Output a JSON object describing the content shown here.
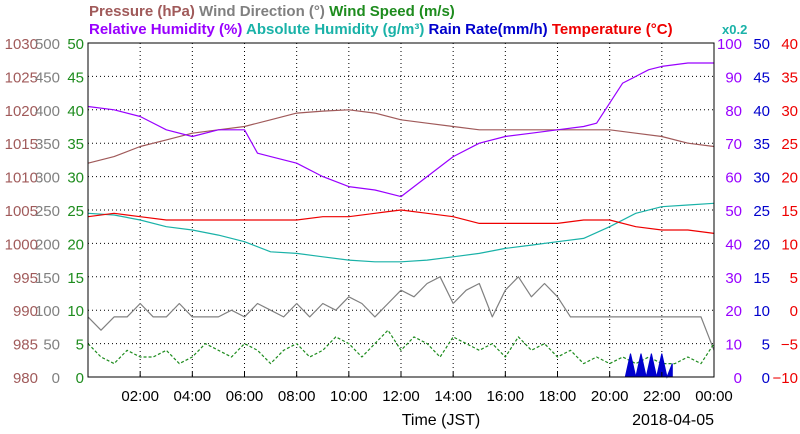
{
  "header": {
    "row1": [
      {
        "text": "Pressure (hPa)",
        "color": "#a05a5a"
      },
      {
        "text": "Wind Direction (°)",
        "color": "#808080"
      },
      {
        "text": "Wind Speed (m/s)",
        "color": "#1e8c1e"
      }
    ],
    "row2": [
      {
        "text": "Relative Humidity (%)",
        "color": "#9900ff"
      },
      {
        "text": "Absolute Humidity (g/m³)",
        "color": "#1ab2a8"
      },
      {
        "text": "Rain Rate(mm/h)",
        "color": "#0000cc"
      },
      {
        "text": "Temperature (°C)",
        "color": "#ee0000"
      }
    ],
    "multiplier": "x0.2"
  },
  "footer": {
    "xlabel": "Time (JST)",
    "date": "2018-04-05"
  },
  "chart_data": {
    "type": "line",
    "title": "",
    "xlabel": "Time (JST)",
    "date": "2018-04-05",
    "x_unit": "hours",
    "xlim": [
      0,
      24
    ],
    "x_ticks": [
      2,
      4,
      6,
      8,
      10,
      12,
      14,
      16,
      18,
      20,
      22,
      24
    ],
    "x_tick_labels": [
      "02:00",
      "04:00",
      "06:00",
      "08:00",
      "10:00",
      "12:00",
      "14:00",
      "16:00",
      "18:00",
      "20:00",
      "22:00",
      "00:00"
    ],
    "grid": true,
    "left_axes": [
      {
        "name": "Pressure (hPa)",
        "color": "#a05a5a",
        "min": 980,
        "max": 1030,
        "labels": [
          "1030",
          "1025",
          "1020",
          "1015",
          "1010",
          "1005",
          "1000",
          "995",
          "990",
          "985",
          "980"
        ]
      },
      {
        "name": "Wind Direction (°)",
        "color": "#808080",
        "min": 0,
        "max": 500,
        "labels": [
          "500",
          "450",
          "400",
          "350",
          "300",
          "250",
          "200",
          "150",
          "100",
          "50",
          "0"
        ]
      },
      {
        "name": "Wind Speed (m/s)",
        "color": "#1e8c1e",
        "min": 0,
        "max": 50,
        "labels": [
          "50",
          "45",
          "40",
          "35",
          "30",
          "25",
          "20",
          "15",
          "10",
          "5",
          "0"
        ]
      }
    ],
    "right_axes": [
      {
        "name": "Relative Humidity (%)",
        "color": "#9900ff",
        "min": 0,
        "max": 100,
        "labels": [
          "100",
          "90",
          "80",
          "70",
          "60",
          "50",
          "40",
          "30",
          "20",
          "10",
          "0"
        ]
      },
      {
        "name": "Rain Rate(mm/h)",
        "color": "#0000cc",
        "min": 0,
        "max": 50,
        "labels": [
          "50",
          "45",
          "40",
          "35",
          "30",
          "25",
          "20",
          "15",
          "10",
          "5",
          "0"
        ]
      },
      {
        "name": "Temperature (°C)",
        "color": "#ee0000",
        "min": -10,
        "max": 40,
        "labels": [
          "40",
          "35",
          "30",
          "25",
          "20",
          "15",
          "10",
          "5",
          "0",
          "−5",
          "−10"
        ]
      }
    ],
    "series": [
      {
        "name": "Pressure (hPa)",
        "axis": "left",
        "axis_min": 980,
        "axis_max": 1030,
        "color": "#a05a5a",
        "x": [
          0,
          1,
          2,
          3,
          4,
          5,
          6,
          7,
          8,
          9,
          10,
          11,
          12,
          13,
          14,
          15,
          16,
          17,
          18,
          19,
          20,
          21,
          22,
          23,
          24
        ],
        "y": [
          1012,
          1013,
          1014.5,
          1015.5,
          1016.5,
          1017,
          1017.5,
          1018.5,
          1019.5,
          1019.8,
          1020,
          1019.5,
          1018.5,
          1018,
          1017.5,
          1017,
          1017,
          1017,
          1017,
          1017,
          1017,
          1016.5,
          1016,
          1015,
          1014.5
        ]
      },
      {
        "name": "Relative Humidity (%)",
        "axis": "right",
        "axis_min": 0,
        "axis_max": 100,
        "color": "#9900ff",
        "x": [
          0,
          1,
          2,
          3,
          4,
          5,
          6,
          6.5,
          7,
          8,
          9,
          10,
          11,
          12,
          13,
          14,
          15,
          16,
          17,
          18,
          19,
          19.5,
          20,
          20.5,
          21,
          21.5,
          22,
          23,
          24
        ],
        "y": [
          81,
          80,
          78,
          74,
          72,
          74,
          74,
          67,
          66,
          64,
          60,
          57,
          56,
          54,
          60,
          66,
          70,
          72,
          73,
          74,
          75,
          76,
          82,
          88,
          90,
          92,
          93,
          94,
          94
        ]
      },
      {
        "name": "Absolute Humidity (g/m³)",
        "axis": "right",
        "axis_min": 0,
        "axis_max": 100,
        "scale_note": "x0.2",
        "color": "#1ab2a8",
        "x": [
          0,
          1,
          2,
          3,
          4,
          5,
          6,
          7,
          8,
          9,
          10,
          11,
          12,
          13,
          14,
          15,
          16,
          17,
          18,
          19,
          20,
          21,
          22,
          23,
          24
        ],
        "y": [
          49,
          48.5,
          47,
          45,
          44,
          42.5,
          40.5,
          37.5,
          37,
          36,
          35,
          34.5,
          34.5,
          35,
          36,
          37,
          38.5,
          39.5,
          40.5,
          41.5,
          45,
          49,
          51,
          51.5,
          52
        ]
      },
      {
        "name": "Temperature (°C)",
        "axis": "right",
        "axis_min": -10,
        "axis_max": 40,
        "color": "#ee0000",
        "x": [
          0,
          1,
          2,
          3,
          4,
          5,
          6,
          7,
          8,
          9,
          10,
          11,
          12,
          13,
          14,
          15,
          16,
          17,
          18,
          19,
          20,
          21,
          22,
          23,
          24
        ],
        "y": [
          14,
          14.5,
          14,
          13.5,
          13.5,
          13.5,
          13.5,
          13.5,
          13.5,
          14,
          14,
          14.5,
          15,
          14.5,
          14,
          13,
          13,
          13,
          13,
          13.5,
          13.5,
          12.5,
          12,
          12,
          11.5
        ]
      },
      {
        "name": "Wind Direction (°)",
        "axis": "left",
        "axis_min": 0,
        "axis_max": 500,
        "color": "#808080",
        "x": [
          0,
          0.5,
          1,
          1.5,
          2,
          2.5,
          3,
          3.5,
          4,
          4.5,
          5,
          5.5,
          6,
          6.5,
          7,
          7.5,
          8,
          8.5,
          9,
          9.5,
          10,
          10.5,
          11,
          11.5,
          12,
          12.5,
          13,
          13.5,
          14,
          14.5,
          15,
          15.5,
          16,
          16.5,
          17,
          17.5,
          18,
          18.5,
          19,
          19.5,
          20,
          20.5,
          21,
          21.5,
          22,
          22.5,
          23,
          23.5,
          24
        ],
        "y": [
          90,
          70,
          90,
          90,
          110,
          90,
          90,
          110,
          90,
          90,
          90,
          100,
          90,
          110,
          100,
          90,
          110,
          90,
          110,
          100,
          120,
          110,
          90,
          110,
          130,
          120,
          140,
          150,
          110,
          130,
          140,
          90,
          130,
          150,
          120,
          140,
          120,
          90,
          90,
          90,
          90,
          90,
          90,
          90,
          90,
          90,
          90,
          90,
          40
        ]
      },
      {
        "name": "Wind Speed (m/s)",
        "axis": "left",
        "axis_min": 0,
        "axis_max": 50,
        "color": "#1e8c1e",
        "x": [
          0,
          0.5,
          1,
          1.5,
          2,
          2.5,
          3,
          3.5,
          4,
          4.5,
          5,
          5.5,
          6,
          6.5,
          7,
          7.5,
          8,
          8.5,
          9,
          9.5,
          10,
          10.5,
          11,
          11.5,
          12,
          12.5,
          13,
          13.5,
          14,
          14.5,
          15,
          15.5,
          16,
          16.5,
          17,
          17.5,
          18,
          18.5,
          19,
          19.5,
          20,
          20.5,
          21,
          21.5,
          22,
          22.5,
          23,
          23.5,
          24
        ],
        "y": [
          5,
          3,
          2,
          4,
          3,
          3,
          4,
          2,
          3,
          5,
          4,
          3,
          5,
          4,
          2,
          4,
          5,
          3,
          4,
          6,
          5,
          3,
          5,
          7,
          4,
          6,
          5,
          3,
          6,
          5,
          4,
          5,
          3,
          6,
          4,
          5,
          3,
          4,
          2,
          3,
          2,
          3,
          2,
          3,
          2,
          2,
          3,
          2,
          5
        ]
      },
      {
        "name": "Rain Rate(mm/h)",
        "axis": "right",
        "axis_min": 0,
        "axis_max": 50,
        "color": "#0000cc",
        "x": [
          20.6,
          20.8,
          21.0,
          21.2,
          21.4,
          21.6,
          21.8,
          22.0,
          22.2,
          22.4
        ],
        "y": [
          0,
          3.5,
          0,
          3.5,
          0,
          3.5,
          0,
          3.5,
          0,
          2
        ]
      }
    ]
  }
}
